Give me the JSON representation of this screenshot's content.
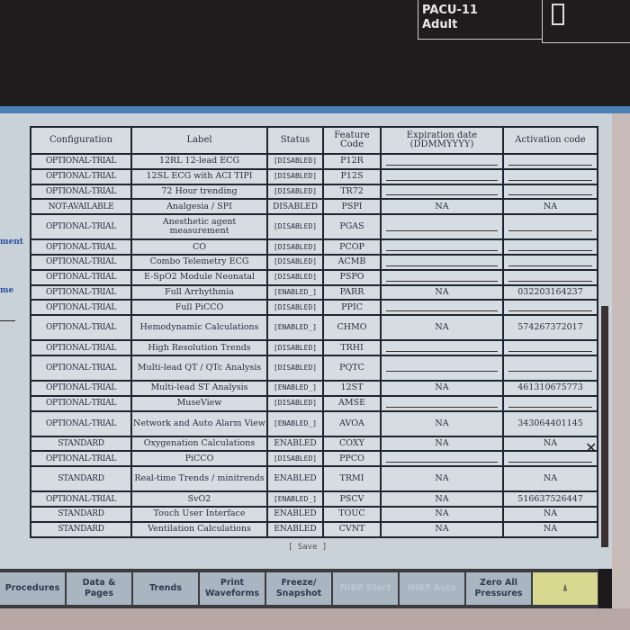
{
  "header": {
    "location": "PACU-11",
    "patient_type": "Adult",
    "battery_icon": "battery-icon"
  },
  "side": {
    "label1": "ment",
    "label2": "me"
  },
  "table": {
    "headers": [
      "Configuration",
      "Label",
      "Status",
      "Feature Code",
      "Expiration date (DDMMYYYY)",
      "Activation code"
    ],
    "rows": [
      {
        "config": "OPTIONAL-TRIAL",
        "label": "12RL 12-lead ECG",
        "status": "[DISABLED]",
        "code": "P12R",
        "expiration": "",
        "activation": ""
      },
      {
        "config": "OPTIONAL-TRIAL",
        "label": "12SL ECG with ACI TIPI",
        "status": "[DISABLED]",
        "code": "P12S",
        "expiration": "",
        "activation": ""
      },
      {
        "config": "OPTIONAL-TRIAL",
        "label": "72 Hour trending",
        "status": "[DISABLED]",
        "code": "TR72",
        "expiration": "",
        "activation": ""
      },
      {
        "config": "NOT-AVAILABLE",
        "label": "Analgesia / SPI",
        "status": "DISABLED",
        "code": "PSPI",
        "expiration": "NA",
        "activation": "NA"
      },
      {
        "config": "OPTIONAL-TRIAL",
        "label": "Anesthetic agent measurement",
        "status": "[DISABLED]",
        "code": "PGAS",
        "expiration": "",
        "activation": ""
      },
      {
        "config": "OPTIONAL-TRIAL",
        "label": "CO",
        "status": "[DISABLED]",
        "code": "PCOP",
        "expiration": "",
        "activation": ""
      },
      {
        "config": "OPTIONAL-TRIAL",
        "label": "Combo Telemetry ECG",
        "status": "[DISABLED]",
        "code": "ACMB",
        "expiration": "",
        "activation": ""
      },
      {
        "config": "OPTIONAL-TRIAL",
        "label": "E-SpO2 Module Neonatal",
        "status": "[DISABLED]",
        "code": "PSPO",
        "expiration": "",
        "activation": ""
      },
      {
        "config": "OPTIONAL-TRIAL",
        "label": "Full Arrhythmia",
        "status": "[ENABLED_]",
        "code": "PARR",
        "expiration": "NA",
        "activation": "032203164237"
      },
      {
        "config": "OPTIONAL-TRIAL",
        "label": "Full PiCCO",
        "status": "[DISABLED]",
        "code": "PPIC",
        "expiration": "",
        "activation": ""
      },
      {
        "config": "OPTIONAL-TRIAL",
        "label": "Hemodynamic Calculations",
        "status": "[ENABLED_]",
        "code": "CHMO",
        "expiration": "NA",
        "activation": "574267372017"
      },
      {
        "config": "OPTIONAL-TRIAL",
        "label": "High Resolution Trends",
        "status": "[DISABLED]",
        "code": "TRHI",
        "expiration": "",
        "activation": ""
      },
      {
        "config": "OPTIONAL-TRIAL",
        "label": "Multi-lead QT / QTc Analysis",
        "status": "[DISABLED]",
        "code": "PQTC",
        "expiration": "",
        "activation": ""
      },
      {
        "config": "OPTIONAL-TRIAL",
        "label": "Multi-lead ST Analysis",
        "status": "[ENABLED_]",
        "code": "12ST",
        "expiration": "NA",
        "activation": "461310675773"
      },
      {
        "config": "OPTIONAL-TRIAL",
        "label": "MuseView",
        "status": "[DISABLED]",
        "code": "AMSE",
        "expiration": "",
        "activation": ""
      },
      {
        "config": "OPTIONAL-TRIAL",
        "label": "Network and Auto Alarm View",
        "status": "[ENABLED_]",
        "code": "AVOA",
        "expiration": "NA",
        "activation": "343064401145"
      },
      {
        "config": "STANDARD",
        "label": "Oxygenation Calculations",
        "status": "ENABLED",
        "code": "COXY",
        "expiration": "NA",
        "activation": "NA"
      },
      {
        "config": "OPTIONAL-TRIAL",
        "label": "PiCCO",
        "status": "[DISABLED]",
        "code": "PPCO",
        "expiration": "",
        "activation": ""
      },
      {
        "config": "STANDARD",
        "label": "Real-time Trends / minitrends",
        "status": "ENABLED",
        "code": "TRMI",
        "expiration": "NA",
        "activation": "NA"
      },
      {
        "config": "OPTIONAL-TRIAL",
        "label": "SvO2",
        "status": "[ENABLED_]",
        "code": "PSCV",
        "expiration": "NA",
        "activation": "516637526447"
      },
      {
        "config": "STANDARD",
        "label": "Touch User Interface",
        "status": "ENABLED",
        "code": "TOUC",
        "expiration": "NA",
        "activation": "NA"
      },
      {
        "config": "STANDARD",
        "label": "Ventilation Calculations",
        "status": "ENABLED",
        "code": "CVNT",
        "expiration": "NA",
        "activation": "NA"
      }
    ]
  },
  "save_label": "[ Save ]",
  "close_label": "✕",
  "buttons": [
    {
      "label": "Procedures",
      "enabled": true
    },
    {
      "label": "Data & Pages",
      "enabled": true
    },
    {
      "label": "Trends",
      "enabled": true
    },
    {
      "label": "Print Waveforms",
      "enabled": true
    },
    {
      "label": "Freeze/ Snapshot",
      "enabled": true
    },
    {
      "label": "NIBP Start",
      "enabled": false
    },
    {
      "label": "NIBP Auto",
      "enabled": false
    },
    {
      "label": "Zero All Pressures",
      "enabled": true
    },
    {
      "label": "⍋",
      "enabled": true
    }
  ]
}
